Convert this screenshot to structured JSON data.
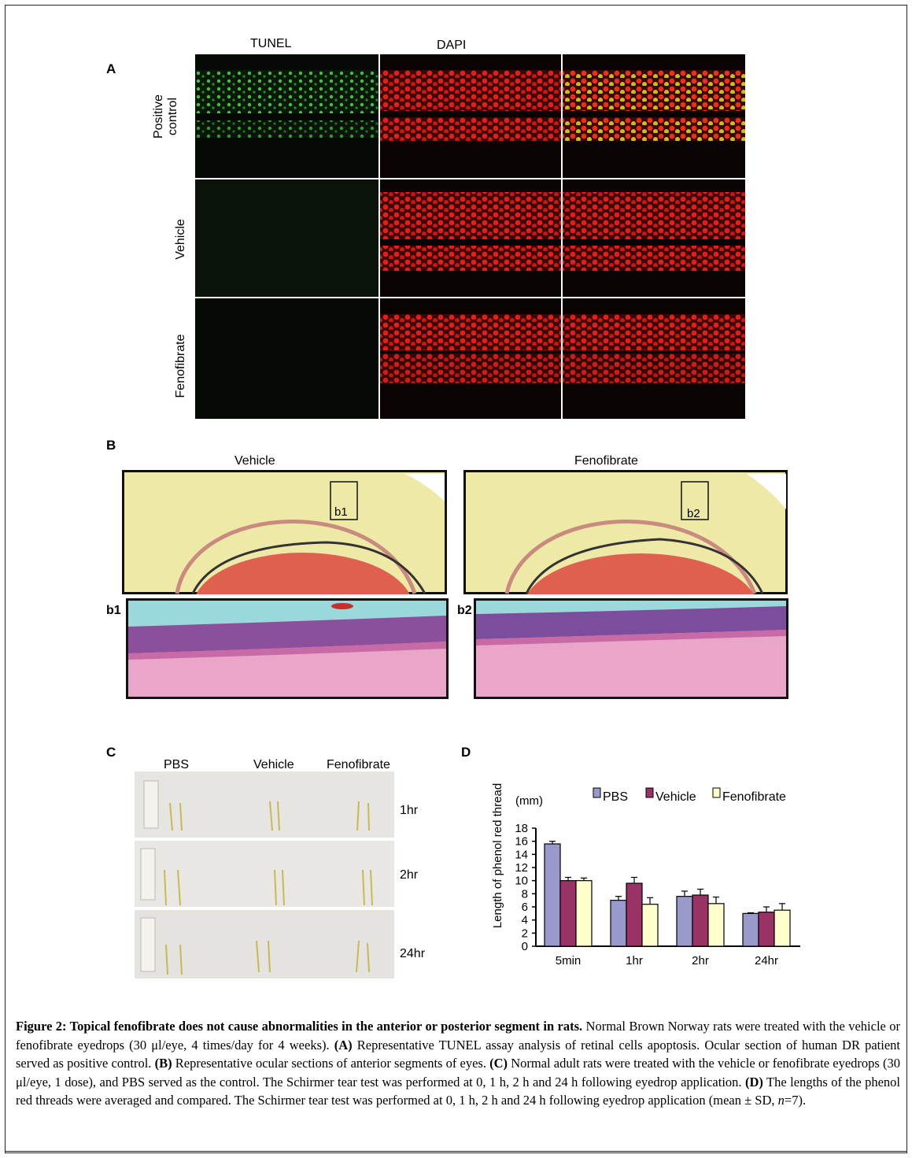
{
  "figure": {
    "panelA": {
      "letter": "A",
      "columns": [
        "TUNEL",
        "DAPI"
      ],
      "rows": [
        "Positive\ncontrol",
        "Vehicle",
        "Fenofibrate"
      ],
      "rows_text": [
        "Positive control",
        "Vehicle",
        "Fenofibrate"
      ]
    },
    "panelB": {
      "letter": "B",
      "titles": [
        "Vehicle",
        "Fenofibrate"
      ],
      "box_labels": [
        "b1",
        "b2"
      ],
      "sub_labels": [
        "b1",
        "b2"
      ]
    },
    "panelC": {
      "letter": "C",
      "columns": [
        "PBS",
        "Vehicle",
        "Fenofibrate"
      ],
      "times": [
        "1hr",
        "2hr",
        "24hr"
      ]
    },
    "panelD": {
      "letter": "D"
    }
  },
  "chart_data": {
    "type": "bar",
    "ylabel": "Length of phenol red thread",
    "unit": "(mm)",
    "categories": [
      "5min",
      "1hr",
      "2hr",
      "24hr"
    ],
    "ylim": [
      0,
      18
    ],
    "yticks": [
      0,
      2,
      4,
      6,
      8,
      10,
      12,
      14,
      16,
      18
    ],
    "legend_position": "top",
    "series": [
      {
        "name": "PBS",
        "color": "#9999cc",
        "values": [
          15.6,
          7.0,
          7.6,
          5.0
        ],
        "errors": [
          0.4,
          0.6,
          0.8,
          0.1
        ]
      },
      {
        "name": "Vehicle",
        "color": "#993366",
        "values": [
          10.0,
          9.6,
          7.8,
          5.2
        ],
        "errors": [
          0.5,
          0.9,
          0.9,
          0.8
        ]
      },
      {
        "name": "Fenofibrate",
        "color": "#ffffcc",
        "values": [
          10.0,
          6.4,
          6.5,
          5.5
        ],
        "errors": [
          0.4,
          1.0,
          1.0,
          1.0
        ]
      }
    ]
  },
  "caption": {
    "title": "Figure 2: Topical fenofibrate does not cause abnormalities in the anterior or posterior segment in rats.",
    "s1": " Normal Brown Norway rats were treated with the vehicle or fenofibrate eyedrops (30 μl/eye, 4 times/day for 4 weeks). ",
    "A": "(A)",
    "s2": " Representative TUNEL assay analysis of retinal cells apoptosis. Ocular section of human DR patient served as positive control. ",
    "B": "(B)",
    "s3": " Representative ocular sections of anterior segments of eyes. ",
    "C": "(C)",
    "s4": " Normal adult rats were treated with the vehicle or fenofibrate eyedrops (30 μl/eye, 1 dose), and PBS served as the control. The Schirmer tear test was performed at 0, 1 h, 2 h and 24 h following eyedrop application. ",
    "D": "(D)",
    "s5": " The lengths of the phenol red threads were averaged and compared. The Schirmer tear test was performed at 0, 1 h, 2 h and 24 h following eyedrop application (mean ± SD, ",
    "n": "n",
    "s6": "=7)."
  }
}
